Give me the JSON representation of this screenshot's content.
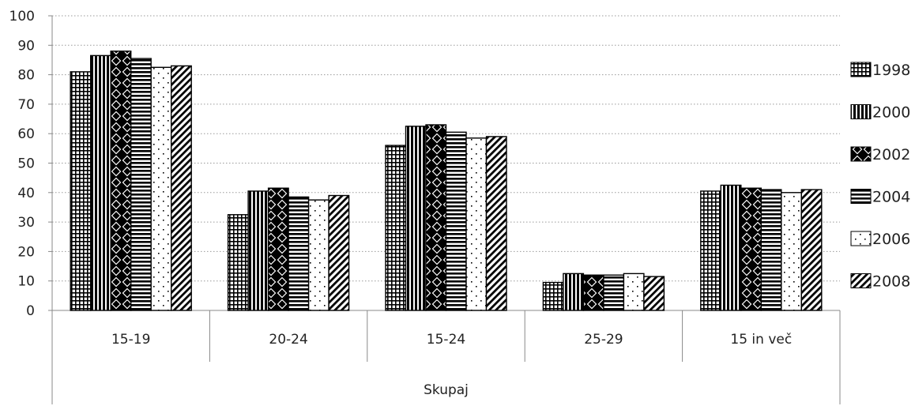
{
  "chart_data": {
    "type": "bar",
    "categories": [
      "15-19",
      "20-24",
      "15-24",
      "25-29",
      "15 in več"
    ],
    "group_label": "Skupaj",
    "ylim": [
      0,
      100
    ],
    "yticks": [
      0,
      10,
      20,
      30,
      40,
      50,
      60,
      70,
      80,
      90,
      100
    ],
    "grid": true,
    "legend_position": "right",
    "series": [
      {
        "name": "1998",
        "pattern": "grid",
        "values": [
          81,
          32.5,
          56,
          9.5,
          40.5
        ]
      },
      {
        "name": "2000",
        "pattern": "vertical-stripes",
        "values": [
          86.5,
          40.5,
          62.5,
          12.5,
          42.5
        ]
      },
      {
        "name": "2002",
        "pattern": "diamonds",
        "values": [
          88,
          41.5,
          63,
          12,
          41.5
        ]
      },
      {
        "name": "2004",
        "pattern": "horizontal-stripes",
        "values": [
          85.5,
          38.5,
          60.5,
          12,
          41
        ]
      },
      {
        "name": "2006",
        "pattern": "sparse-dots",
        "values": [
          82.5,
          37.5,
          58.5,
          12.5,
          40
        ]
      },
      {
        "name": "2008",
        "pattern": "diagonal-hatch",
        "values": [
          83,
          39,
          59,
          11.5,
          41
        ]
      }
    ]
  }
}
